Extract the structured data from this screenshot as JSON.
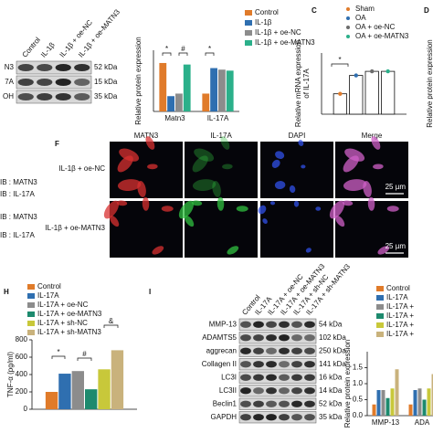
{
  "blot_top": {
    "lanes": [
      "Control",
      "IL-1β",
      "IL-1β + oe-NC",
      "IL-1β + oe-MATN3"
    ],
    "rows": [
      {
        "label": "N3",
        "size": "52 kDa"
      },
      {
        "label": "7A",
        "size": "15 kDa"
      },
      {
        "label": "OH",
        "size": "35 kDa"
      }
    ]
  },
  "ib_labels": [
    "IB : MATN3",
    "IB : IL-17A",
    "IB : MATN3",
    "IB : IL-17A"
  ],
  "micrographs": {
    "label": "F",
    "columns": [
      "MATN3",
      "IL-17A",
      "DAPI",
      "Merge"
    ],
    "rows": [
      "IL-1β + oe-NC",
      "IL-1β + oe-MATN3"
    ],
    "scale_bar": "25 µm"
  },
  "blot_I": {
    "label": "I",
    "lanes": [
      "Control",
      "IL-17A",
      "IL-17A + oe-NC",
      "IL-17A + oe-MATN3",
      "IL-17A + sh-NC",
      "IL-17A + sh-MATN3"
    ],
    "rows": [
      {
        "label": "MMP-13",
        "size": "54 kDa"
      },
      {
        "label": "ADAMTS5",
        "size": "102 kDa"
      },
      {
        "label": "aggrecan",
        "size": "250 kDa"
      },
      {
        "label": "Collagen II",
        "size": "141 kDa"
      },
      {
        "label": "LC3I",
        "size": "16 kDa"
      },
      {
        "label": "LC3II",
        "size": "14 kDa"
      },
      {
        "label": "Beclin1",
        "size": "52 kDa"
      },
      {
        "label": "GAPDH",
        "size": "35 kDa"
      }
    ]
  },
  "chart_data": [
    {
      "type": "bar",
      "ylabel": "Relative protein expression",
      "categories": [
        "Matn3",
        "IL-17A"
      ],
      "series": [
        {
          "name": "Control",
          "color": "#e07b2a",
          "values": [
            0.95,
            0.35
          ]
        },
        {
          "name": "IL-1β",
          "color": "#2f6fb0",
          "values": [
            0.3,
            0.85
          ]
        },
        {
          "name": "IL-1β + oe-NC",
          "color": "#8c8c8c",
          "values": [
            0.35,
            0.82
          ]
        },
        {
          "name": "IL-1β + oe-MATN3",
          "color": "#2bb08a",
          "values": [
            0.92,
            0.8
          ]
        }
      ],
      "ylim": [
        0,
        1.2
      ],
      "annotations": [
        "*",
        "#",
        "*"
      ]
    },
    {
      "type": "bar",
      "label": "C",
      "ylabel": [
        "Relative mRNA expression",
        "of IL-17A"
      ],
      "categories": [
        null
      ],
      "series": [
        {
          "name": "Sham",
          "color": "#e07b2a",
          "values": [
            1.0
          ]
        },
        {
          "name": "OA",
          "color": "#2f6fb0",
          "values": [
            1.9
          ]
        },
        {
          "name": "OA + oe-NC",
          "color": "#6c6c6c",
          "values": [
            2.1
          ]
        },
        {
          "name": "OA + oe-MATN3",
          "color": "#2bb08a",
          "values": [
            2.1
          ]
        }
      ],
      "ylim": [
        0,
        3
      ],
      "annotations": [
        "*"
      ]
    },
    {
      "type": "bar",
      "label": "D",
      "ylabel": "Relative protein expression"
    },
    {
      "type": "bar",
      "label": "H",
      "ylabel": "TNF-α (pg/ml)",
      "categories": [
        null
      ],
      "series": [
        {
          "name": "Control",
          "color": "#e07b2a",
          "values": [
            200
          ]
        },
        {
          "name": "IL-17A",
          "color": "#2f6fb0",
          "values": [
            410
          ]
        },
        {
          "name": "IL-17A + oe-NC",
          "color": "#8c8c8c",
          "values": [
            440
          ]
        },
        {
          "name": "IL-17A + oe-MATN3",
          "color": "#1d8a6e",
          "values": [
            230
          ]
        },
        {
          "name": "IL-17A + sh-NC",
          "color": "#c8c83a",
          "values": [
            460
          ]
        },
        {
          "name": "IL-17A + sh-MATN3",
          "color": "#c9b27c",
          "values": [
            680
          ]
        }
      ],
      "ylim": [
        0,
        800
      ],
      "yticks": [
        0,
        200,
        400,
        600,
        800
      ],
      "annotations": [
        "*",
        "#",
        "&"
      ]
    },
    {
      "type": "bar",
      "ylabel": "Relative protein expression",
      "categories": [
        "MMP-13",
        "ADA"
      ],
      "series": [
        {
          "name": "Control",
          "color": "#e07b2a",
          "values": [
            0.35,
            0.35
          ]
        },
        {
          "name": "IL-17A",
          "color": "#2f6fb0",
          "values": [
            0.8,
            0.8
          ]
        },
        {
          "name": "IL-17A +",
          "color": "#8c8c8c",
          "values": [
            0.8,
            0.85
          ]
        },
        {
          "name": "IL-17A +",
          "color": "#1d8a6e",
          "values": [
            0.55,
            0.5
          ]
        },
        {
          "name": "IL-17A +",
          "color": "#c8c83a",
          "values": [
            0.85,
            0.85
          ]
        },
        {
          "name": "IL-17A +",
          "color": "#c9b27c",
          "values": [
            1.45,
            1.3
          ]
        }
      ],
      "ylim": [
        0,
        2
      ],
      "yticks": [
        {
          "value": 0,
          "label": "0.0"
        },
        {
          "value": 0.5,
          "label": "0.5"
        },
        {
          "value": 1,
          "label": "1.0"
        },
        {
          "value": 1.5,
          "label": "1.5"
        }
      ]
    }
  ]
}
